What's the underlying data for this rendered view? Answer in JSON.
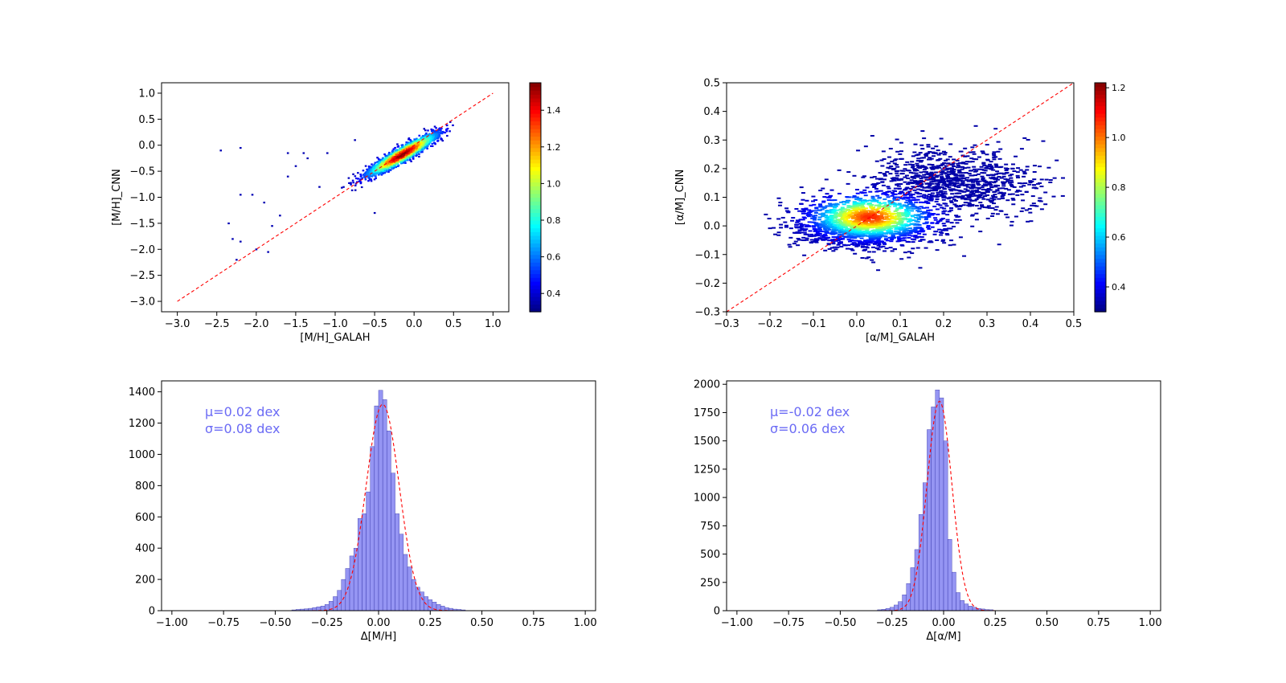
{
  "chart_data": [
    {
      "type": "heatmap",
      "subtype": "2d-histogram",
      "xlabel": "[M/H]_GALAH",
      "ylabel": "[M/H]_CNN",
      "xlim": [
        -3.2,
        1.2
      ],
      "ylim": [
        -3.2,
        1.2
      ],
      "xticks": [
        -3.0,
        -2.5,
        -2.0,
        -1.5,
        -1.0,
        -0.5,
        0.0,
        0.5,
        1.0
      ],
      "yticks": [
        -3.0,
        -2.5,
        -2.0,
        -1.5,
        -1.0,
        -0.5,
        0.0,
        0.5,
        1.0
      ],
      "xtick_labels": [
        "−3.0",
        "−2.5",
        "−2.0",
        "−1.5",
        "−1.0",
        "−0.5",
        "0.0",
        "0.5",
        "1.0"
      ],
      "ytick_labels": [
        "−3.0",
        "−2.5",
        "−2.0",
        "−1.5",
        "−1.0",
        "−0.5",
        "0.0",
        "0.5",
        "1.0"
      ],
      "reference_line": {
        "x": [
          -3.0,
          1.0
        ],
        "y": [
          -3.0,
          1.0
        ],
        "color": "#ff0000",
        "style": "dashed"
      },
      "colormap": "jet",
      "colorbar": {
        "range": [
          0.3,
          1.55
        ],
        "ticks": [
          0.4,
          0.6,
          0.8,
          1.0,
          1.2,
          1.4
        ],
        "tick_labels": [
          "0.4",
          "0.6",
          "0.8",
          "1.0",
          "1.2",
          "1.4"
        ]
      },
      "density_core": {
        "main_axis_from": [
          -0.7,
          -0.7
        ],
        "main_axis_to": [
          0.45,
          0.25
        ],
        "peak_at": [
          -0.15,
          -0.2
        ],
        "spread": 0.07
      },
      "outliers": [
        [
          -2.45,
          -0.1
        ],
        [
          -2.2,
          -0.05
        ],
        [
          -2.2,
          -0.95
        ],
        [
          -2.05,
          -0.95
        ],
        [
          -1.9,
          -1.1
        ],
        [
          -2.35,
          -1.5
        ],
        [
          -2.3,
          -1.8
        ],
        [
          -2.2,
          -1.85
        ],
        [
          -2.0,
          -2.0
        ],
        [
          -1.85,
          -2.05
        ],
        [
          -2.25,
          -2.2
        ],
        [
          -1.8,
          -1.55
        ],
        [
          -1.6,
          -0.15
        ],
        [
          -1.5,
          -0.4
        ],
        [
          -1.35,
          -0.25
        ],
        [
          -1.7,
          -1.35
        ],
        [
          -1.4,
          -0.15
        ],
        [
          -1.1,
          -0.15
        ],
        [
          -0.5,
          -1.3
        ],
        [
          -1.6,
          -0.6
        ],
        [
          -1.2,
          -0.8
        ],
        [
          -0.75,
          0.1
        ]
      ]
    },
    {
      "type": "heatmap",
      "subtype": "2d-histogram",
      "xlabel": "[α/M]_GALAH",
      "ylabel": "[α/M]_CNN",
      "xlim": [
        -0.3,
        0.5
      ],
      "ylim": [
        -0.3,
        0.5
      ],
      "xticks": [
        -0.3,
        -0.2,
        -0.1,
        0.0,
        0.1,
        0.2,
        0.3,
        0.4,
        0.5
      ],
      "yticks": [
        -0.3,
        -0.2,
        -0.1,
        0.0,
        0.1,
        0.2,
        0.3,
        0.4,
        0.5
      ],
      "xtick_labels": [
        "−0.3",
        "−0.2",
        "−0.1",
        "0.0",
        "0.1",
        "0.2",
        "0.3",
        "0.4",
        "0.5"
      ],
      "ytick_labels": [
        "−0.3",
        "−0.2",
        "−0.1",
        "0.0",
        "0.1",
        "0.2",
        "0.3",
        "0.4",
        "0.5"
      ],
      "reference_line": {
        "x": [
          -0.3,
          0.5
        ],
        "y": [
          -0.3,
          0.5
        ],
        "color": "#ff0000",
        "style": "dashed"
      },
      "colormap": "jet",
      "colorbar": {
        "range": [
          0.3,
          1.22
        ],
        "ticks": [
          0.4,
          0.6,
          0.8,
          1.0,
          1.2
        ],
        "tick_labels": [
          "0.4",
          "0.6",
          "0.8",
          "1.0",
          "1.2"
        ]
      },
      "density_core": {
        "center": [
          0.02,
          0.01
        ],
        "secondary_center": [
          0.22,
          0.15
        ],
        "peak_at": [
          0.03,
          0.03
        ],
        "spread_x": 0.08,
        "spread_y": 0.045
      }
    },
    {
      "type": "bar",
      "subtype": "histogram",
      "xlabel": "Δ[M/H]",
      "ylabel": "",
      "xlim": [
        -1.05,
        1.05
      ],
      "ylim": [
        0,
        1470
      ],
      "xticks": [
        -1.0,
        -0.75,
        -0.5,
        -0.25,
        0.0,
        0.25,
        0.5,
        0.75,
        1.0
      ],
      "yticks": [
        0,
        200,
        400,
        600,
        800,
        1000,
        1200,
        1400
      ],
      "xtick_labels": [
        "−1.00",
        "−0.75",
        "−0.50",
        "−0.25",
        "0.00",
        "0.25",
        "0.50",
        "0.75",
        "1.00"
      ],
      "ytick_labels": [
        "0",
        "200",
        "400",
        "600",
        "800",
        "1000",
        "1200",
        "1400"
      ],
      "bin_width": 0.02,
      "bins": [
        [
          -0.41,
          5
        ],
        [
          -0.39,
          8
        ],
        [
          -0.37,
          10
        ],
        [
          -0.35,
          12
        ],
        [
          -0.33,
          15
        ],
        [
          -0.31,
          20
        ],
        [
          -0.29,
          25
        ],
        [
          -0.27,
          30
        ],
        [
          -0.25,
          40
        ],
        [
          -0.23,
          60
        ],
        [
          -0.21,
          90
        ],
        [
          -0.19,
          130
        ],
        [
          -0.17,
          200
        ],
        [
          -0.15,
          270
        ],
        [
          -0.13,
          350
        ],
        [
          -0.11,
          400
        ],
        [
          -0.09,
          590
        ],
        [
          -0.07,
          620
        ],
        [
          -0.05,
          760
        ],
        [
          -0.03,
          1050
        ],
        [
          -0.01,
          1310
        ],
        [
          0.01,
          1410
        ],
        [
          0.03,
          1350
        ],
        [
          0.05,
          1150
        ],
        [
          0.07,
          880
        ],
        [
          0.09,
          620
        ],
        [
          0.11,
          490
        ],
        [
          0.13,
          360
        ],
        [
          0.15,
          280
        ],
        [
          0.17,
          200
        ],
        [
          0.19,
          150
        ],
        [
          0.21,
          120
        ],
        [
          0.23,
          90
        ],
        [
          0.25,
          70
        ],
        [
          0.27,
          55
        ],
        [
          0.29,
          40
        ],
        [
          0.31,
          30
        ],
        [
          0.33,
          20
        ],
        [
          0.35,
          15
        ],
        [
          0.37,
          10
        ],
        [
          0.39,
          8
        ],
        [
          0.41,
          5
        ]
      ],
      "fit": {
        "mu": 0.02,
        "sigma": 0.08,
        "amplitude": 1320,
        "color": "#ff0000",
        "style": "dashed",
        "range": [
          -1.0,
          1.0
        ]
      },
      "annotation_lines": [
        "μ=0.02 dex",
        "σ=0.08 dex"
      ],
      "bar_color": "#7b7bf0"
    },
    {
      "type": "bar",
      "subtype": "histogram",
      "xlabel": "Δ[α/M]",
      "ylabel": "",
      "xlim": [
        -1.05,
        1.05
      ],
      "ylim": [
        0,
        2030
      ],
      "xticks": [
        -1.0,
        -0.75,
        -0.5,
        -0.25,
        0.0,
        0.25,
        0.5,
        0.75,
        1.0
      ],
      "yticks": [
        0,
        250,
        500,
        750,
        1000,
        1250,
        1500,
        1750,
        2000
      ],
      "xtick_labels": [
        "−1.00",
        "−0.75",
        "−0.50",
        "−0.25",
        "0.00",
        "0.25",
        "0.50",
        "0.75",
        "1.00"
      ],
      "ytick_labels": [
        "0",
        "250",
        "500",
        "750",
        "1000",
        "1250",
        "1500",
        "1750",
        "2000"
      ],
      "bin_width": 0.02,
      "bins": [
        [
          -0.31,
          8
        ],
        [
          -0.29,
          12
        ],
        [
          -0.27,
          20
        ],
        [
          -0.25,
          30
        ],
        [
          -0.23,
          50
        ],
        [
          -0.21,
          80
        ],
        [
          -0.19,
          140
        ],
        [
          -0.17,
          240
        ],
        [
          -0.15,
          380
        ],
        [
          -0.13,
          540
        ],
        [
          -0.11,
          850
        ],
        [
          -0.09,
          1130
        ],
        [
          -0.07,
          1600
        ],
        [
          -0.05,
          1800
        ],
        [
          -0.03,
          1950
        ],
        [
          -0.01,
          1880
        ],
        [
          0.01,
          1500
        ],
        [
          0.03,
          630
        ],
        [
          0.05,
          340
        ],
        [
          0.07,
          160
        ],
        [
          0.09,
          90
        ],
        [
          0.11,
          60
        ],
        [
          0.13,
          40
        ],
        [
          0.15,
          30
        ],
        [
          0.17,
          20
        ],
        [
          0.19,
          15
        ],
        [
          0.21,
          10
        ],
        [
          0.23,
          8
        ]
      ],
      "fit": {
        "mu": -0.02,
        "sigma": 0.06,
        "amplitude": 1850,
        "color": "#ff0000",
        "style": "dashed",
        "range": [
          -1.0,
          1.0
        ]
      },
      "annotation_lines": [
        "μ=-0.02 dex",
        "σ=0.06 dex"
      ],
      "bar_color": "#7b7bf0"
    }
  ]
}
